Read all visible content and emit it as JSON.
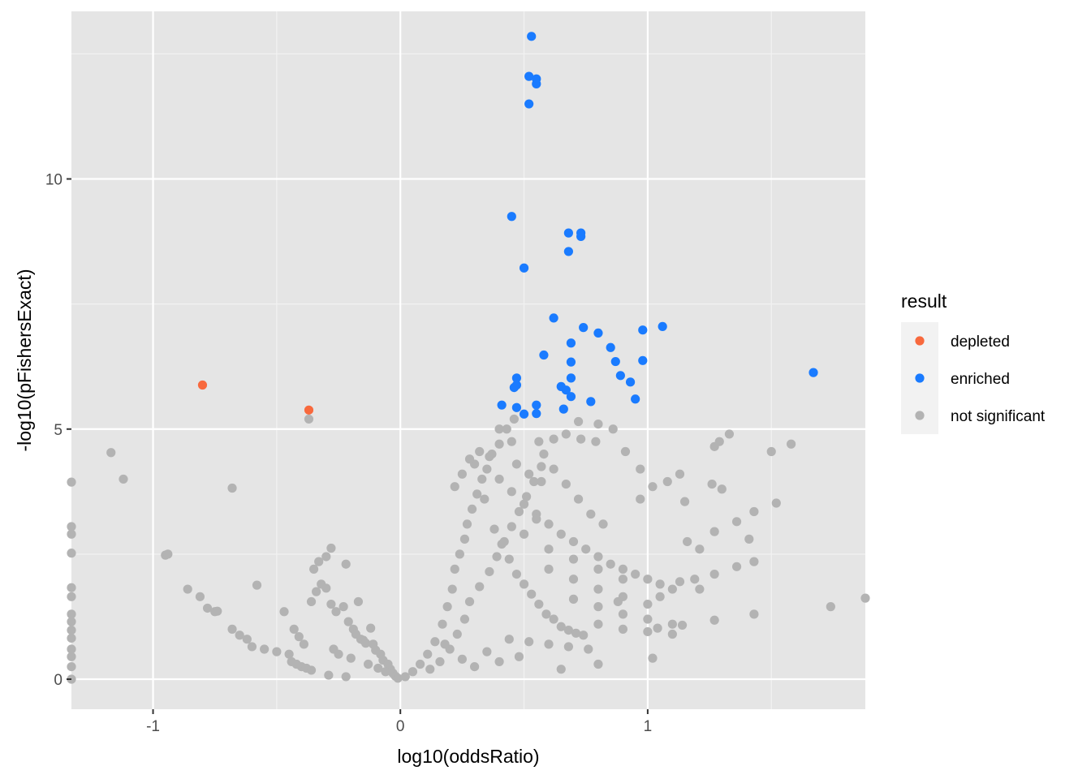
{
  "chart_data": {
    "type": "scatter",
    "title": "",
    "xlabel": "log10(oddsRatio)",
    "ylabel": "-log10(pFishersExact)",
    "xlim": [
      -1.33,
      1.88
    ],
    "ylim": [
      -0.6,
      13.35
    ],
    "x_ticks": [
      -1,
      0,
      1
    ],
    "x_tick_labels": [
      "-1",
      "0",
      "1"
    ],
    "y_ticks": [
      0,
      5,
      10
    ],
    "y_tick_labels": [
      "0",
      "5",
      "10"
    ],
    "grid": true,
    "panel_background": "#e5e5e5",
    "legend": {
      "title": "result",
      "position": "right",
      "entries": [
        {
          "label": "depleted",
          "color": "#f8693d"
        },
        {
          "label": "enriched",
          "color": "#1a7bff"
        },
        {
          "label": "not significant",
          "color": "#b3b3b3"
        }
      ]
    },
    "series": [
      {
        "name": "depleted",
        "color": "#f8693d",
        "points": [
          [
            -0.8,
            5.88
          ],
          [
            -0.37,
            5.38
          ]
        ]
      },
      {
        "name": "enriched",
        "color": "#1a7bff",
        "points": [
          [
            0.53,
            12.85
          ],
          [
            0.52,
            12.05
          ],
          [
            0.55,
            12.0
          ],
          [
            0.55,
            11.9
          ],
          [
            0.52,
            11.5
          ],
          [
            0.45,
            9.25
          ],
          [
            0.68,
            8.92
          ],
          [
            0.73,
            8.92
          ],
          [
            0.73,
            8.85
          ],
          [
            0.68,
            8.55
          ],
          [
            0.5,
            8.22
          ],
          [
            0.62,
            7.22
          ],
          [
            0.74,
            7.03
          ],
          [
            1.06,
            7.05
          ],
          [
            0.98,
            6.98
          ],
          [
            0.8,
            6.92
          ],
          [
            0.69,
            6.72
          ],
          [
            0.85,
            6.63
          ],
          [
            0.58,
            6.48
          ],
          [
            0.87,
            6.35
          ],
          [
            0.98,
            6.37
          ],
          [
            0.69,
            6.34
          ],
          [
            1.67,
            6.13
          ],
          [
            0.89,
            6.07
          ],
          [
            0.47,
            6.02
          ],
          [
            0.69,
            6.02
          ],
          [
            0.93,
            5.94
          ],
          [
            0.47,
            5.88
          ],
          [
            0.46,
            5.83
          ],
          [
            0.65,
            5.85
          ],
          [
            0.67,
            5.78
          ],
          [
            0.69,
            5.65
          ],
          [
            0.95,
            5.6
          ],
          [
            0.77,
            5.55
          ],
          [
            0.41,
            5.48
          ],
          [
            0.55,
            5.48
          ],
          [
            0.47,
            5.43
          ],
          [
            0.66,
            5.4
          ],
          [
            0.5,
            5.3
          ],
          [
            0.55,
            5.31
          ]
        ]
      },
      {
        "name": "not significant",
        "color": "#b3b3b3",
        "points": [
          [
            -1.33,
            3.94
          ],
          [
            -1.33,
            3.05
          ],
          [
            -1.33,
            2.9
          ],
          [
            -1.33,
            2.52
          ],
          [
            -1.33,
            1.83
          ],
          [
            -1.33,
            1.65
          ],
          [
            -1.33,
            1.3
          ],
          [
            -1.33,
            1.15
          ],
          [
            -1.33,
            0.98
          ],
          [
            -1.33,
            0.82
          ],
          [
            -1.33,
            0.6
          ],
          [
            -1.33,
            0.45
          ],
          [
            -1.33,
            0.25
          ],
          [
            -1.33,
            0.0
          ],
          [
            -1.17,
            4.53
          ],
          [
            -1.12,
            4.0
          ],
          [
            -0.95,
            2.48
          ],
          [
            -0.94,
            2.5
          ],
          [
            -0.86,
            1.8
          ],
          [
            -0.81,
            1.65
          ],
          [
            -0.78,
            1.42
          ],
          [
            -0.75,
            1.35
          ],
          [
            -0.74,
            1.36
          ],
          [
            -0.68,
            3.82
          ],
          [
            -0.68,
            1.0
          ],
          [
            -0.65,
            0.88
          ],
          [
            -0.62,
            0.8
          ],
          [
            -0.58,
            1.88
          ],
          [
            -0.6,
            0.65
          ],
          [
            -0.55,
            0.6
          ],
          [
            -0.5,
            0.55
          ],
          [
            -0.45,
            0.5
          ],
          [
            -0.44,
            0.35
          ],
          [
            -0.42,
            0.3
          ],
          [
            -0.4,
            0.25
          ],
          [
            -0.38,
            0.22
          ],
          [
            -0.37,
            5.2
          ],
          [
            -0.36,
            0.18
          ],
          [
            -0.35,
            2.2
          ],
          [
            -0.36,
            1.55
          ],
          [
            -0.34,
            1.75
          ],
          [
            -0.32,
            1.9
          ],
          [
            -0.3,
            1.82
          ],
          [
            -0.33,
            2.35
          ],
          [
            -0.3,
            2.45
          ],
          [
            -0.28,
            2.62
          ],
          [
            -0.28,
            1.5
          ],
          [
            -0.26,
            1.35
          ],
          [
            -0.23,
            1.45
          ],
          [
            -0.22,
            2.3
          ],
          [
            -0.21,
            1.15
          ],
          [
            -0.19,
            1.0
          ],
          [
            -0.18,
            0.9
          ],
          [
            -0.16,
            0.8
          ],
          [
            -0.15,
            0.78
          ],
          [
            -0.17,
            1.55
          ],
          [
            -0.14,
            0.72
          ],
          [
            -0.12,
            1.02
          ],
          [
            -0.11,
            0.7
          ],
          [
            -0.1,
            0.58
          ],
          [
            -0.08,
            0.5
          ],
          [
            -0.07,
            0.38
          ],
          [
            -0.05,
            0.3
          ],
          [
            -0.04,
            0.2
          ],
          [
            -0.03,
            0.12
          ],
          [
            -0.02,
            0.06
          ],
          [
            -0.01,
            0.02
          ],
          [
            -0.47,
            1.35
          ],
          [
            -0.43,
            1.0
          ],
          [
            -0.41,
            0.85
          ],
          [
            -0.39,
            0.7
          ],
          [
            -0.27,
            0.6
          ],
          [
            -0.25,
            0.5
          ],
          [
            -0.2,
            0.42
          ],
          [
            -0.13,
            0.3
          ],
          [
            -0.09,
            0.22
          ],
          [
            -0.06,
            0.15
          ],
          [
            -0.29,
            0.08
          ],
          [
            -0.22,
            0.05
          ],
          [
            0.02,
            0.05
          ],
          [
            0.05,
            0.15
          ],
          [
            0.08,
            0.3
          ],
          [
            0.11,
            0.5
          ],
          [
            0.14,
            0.75
          ],
          [
            0.17,
            1.1
          ],
          [
            0.19,
            1.45
          ],
          [
            0.21,
            1.8
          ],
          [
            0.22,
            2.2
          ],
          [
            0.24,
            2.5
          ],
          [
            0.26,
            2.8
          ],
          [
            0.27,
            3.1
          ],
          [
            0.29,
            3.4
          ],
          [
            0.31,
            3.7
          ],
          [
            0.33,
            4.0
          ],
          [
            0.35,
            4.2
          ],
          [
            0.37,
            4.5
          ],
          [
            0.4,
            4.7
          ],
          [
            0.43,
            5.0
          ],
          [
            0.46,
            5.2
          ],
          [
            0.3,
            4.3
          ],
          [
            0.34,
            3.6
          ],
          [
            0.38,
            3.0
          ],
          [
            0.41,
            2.7
          ],
          [
            0.44,
            2.4
          ],
          [
            0.47,
            2.1
          ],
          [
            0.5,
            1.9
          ],
          [
            0.53,
            1.7
          ],
          [
            0.56,
            1.5
          ],
          [
            0.59,
            1.3
          ],
          [
            0.62,
            1.2
          ],
          [
            0.65,
            1.05
          ],
          [
            0.68,
            0.98
          ],
          [
            0.71,
            0.92
          ],
          [
            0.74,
            0.88
          ],
          [
            0.4,
            4.0
          ],
          [
            0.45,
            3.75
          ],
          [
            0.5,
            3.5
          ],
          [
            0.55,
            3.3
          ],
          [
            0.6,
            3.1
          ],
          [
            0.65,
            2.9
          ],
          [
            0.7,
            2.75
          ],
          [
            0.75,
            2.6
          ],
          [
            0.8,
            2.45
          ],
          [
            0.85,
            2.3
          ],
          [
            0.9,
            2.2
          ],
          [
            0.95,
            2.1
          ],
          [
            1.0,
            2.0
          ],
          [
            1.05,
            1.9
          ],
          [
            1.1,
            1.8
          ],
          [
            0.5,
            2.9
          ],
          [
            0.6,
            2.6
          ],
          [
            0.7,
            2.4
          ],
          [
            0.8,
            2.2
          ],
          [
            0.9,
            2.0
          ],
          [
            0.6,
            2.2
          ],
          [
            0.7,
            2.0
          ],
          [
            0.8,
            1.8
          ],
          [
            0.9,
            1.65
          ],
          [
            1.0,
            1.5
          ],
          [
            0.7,
            1.6
          ],
          [
            0.8,
            1.45
          ],
          [
            0.9,
            1.3
          ],
          [
            1.0,
            1.2
          ],
          [
            1.1,
            1.1
          ],
          [
            0.8,
            1.1
          ],
          [
            0.9,
            1.0
          ],
          [
            1.0,
            0.95
          ],
          [
            1.1,
            0.9
          ],
          [
            0.44,
            0.8
          ],
          [
            0.52,
            0.75
          ],
          [
            0.6,
            0.7
          ],
          [
            0.68,
            0.65
          ],
          [
            0.76,
            0.6
          ],
          [
            0.3,
            0.25
          ],
          [
            0.4,
            0.35
          ],
          [
            0.48,
            0.45
          ],
          [
            0.25,
            0.4
          ],
          [
            0.35,
            0.55
          ],
          [
            0.55,
            3.2
          ],
          [
            0.58,
            4.5
          ],
          [
            0.62,
            4.2
          ],
          [
            0.67,
            3.9
          ],
          [
            0.72,
            3.6
          ],
          [
            0.77,
            3.3
          ],
          [
            0.82,
            3.1
          ],
          [
            0.47,
            4.3
          ],
          [
            0.52,
            4.1
          ],
          [
            0.57,
            3.95
          ],
          [
            0.72,
            5.15
          ],
          [
            0.8,
            5.1
          ],
          [
            0.86,
            5.0
          ],
          [
            0.73,
            4.8
          ],
          [
            0.79,
            4.75
          ],
          [
            0.67,
            4.9
          ],
          [
            0.62,
            4.8
          ],
          [
            0.56,
            4.75
          ],
          [
            0.45,
            4.75
          ],
          [
            0.4,
            5.0
          ],
          [
            0.36,
            4.45
          ],
          [
            0.32,
            4.55
          ],
          [
            0.28,
            4.4
          ],
          [
            0.25,
            4.1
          ],
          [
            0.22,
            3.85
          ],
          [
            0.91,
            4.55
          ],
          [
            0.97,
            4.2
          ],
          [
            1.02,
            3.85
          ],
          [
            1.08,
            3.95
          ],
          [
            1.13,
            4.1
          ],
          [
            1.15,
            3.55
          ],
          [
            1.16,
            2.75
          ],
          [
            0.97,
            3.6
          ],
          [
            1.27,
            4.65
          ],
          [
            1.29,
            4.75
          ],
          [
            1.33,
            4.9
          ],
          [
            1.26,
            3.9
          ],
          [
            1.3,
            3.8
          ],
          [
            1.36,
            3.15
          ],
          [
            1.43,
            3.35
          ],
          [
            1.27,
            2.95
          ],
          [
            1.21,
            2.6
          ],
          [
            1.41,
            2.8
          ],
          [
            1.5,
            4.55
          ],
          [
            1.58,
            4.7
          ],
          [
            1.52,
            3.52
          ],
          [
            1.43,
            2.35
          ],
          [
            1.36,
            2.25
          ],
          [
            1.27,
            2.1
          ],
          [
            1.19,
            2.0
          ],
          [
            1.13,
            1.95
          ],
          [
            1.43,
            1.3
          ],
          [
            1.27,
            1.18
          ],
          [
            1.14,
            1.08
          ],
          [
            1.04,
            1.02
          ],
          [
            1.21,
            1.8
          ],
          [
            1.05,
            1.65
          ],
          [
            0.88,
            1.55
          ],
          [
            1.74,
            1.45
          ],
          [
            1.88,
            1.62
          ],
          [
            0.8,
            0.3
          ],
          [
            1.02,
            0.42
          ],
          [
            0.65,
            0.2
          ],
          [
            0.16,
            0.35
          ],
          [
            0.12,
            0.2
          ],
          [
            0.2,
            0.6
          ],
          [
            0.23,
            0.9
          ],
          [
            0.18,
            0.7
          ],
          [
            0.26,
            1.2
          ],
          [
            0.28,
            1.55
          ],
          [
            0.32,
            1.85
          ],
          [
            0.36,
            2.15
          ],
          [
            0.39,
            2.45
          ],
          [
            0.42,
            2.75
          ],
          [
            0.45,
            3.05
          ],
          [
            0.48,
            3.35
          ],
          [
            0.51,
            3.65
          ],
          [
            0.54,
            3.95
          ],
          [
            0.57,
            4.25
          ]
        ]
      }
    ]
  }
}
